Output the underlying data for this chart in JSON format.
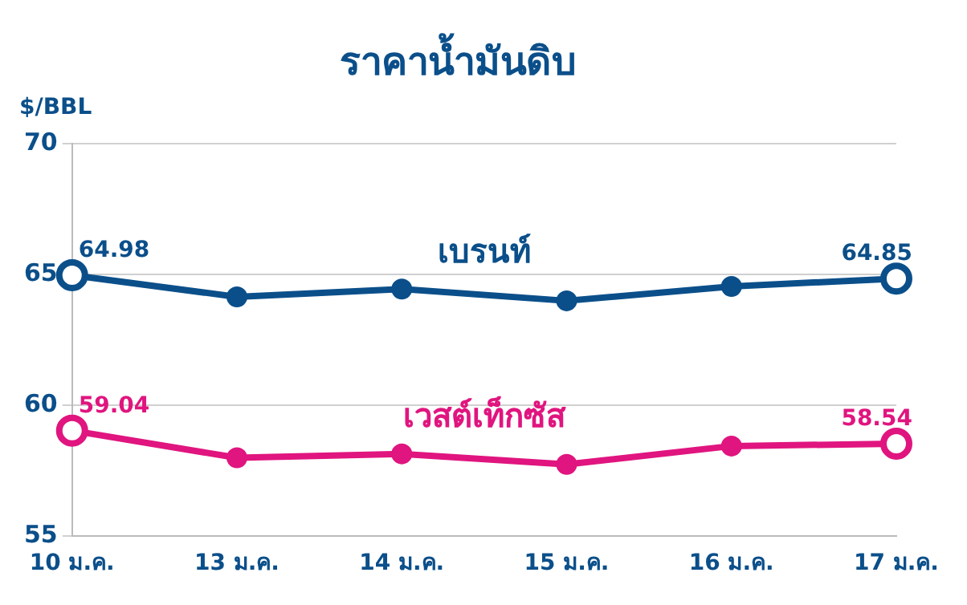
{
  "chart_data": {
    "type": "line",
    "title": "ราคาน้ำมันดิบ",
    "ylabel": "$/BBL",
    "categories": [
      "10 ม.ค.",
      "13 ม.ค.",
      "14 ม.ค.",
      "15 ม.ค.",
      "16 ม.ค.",
      "17 ม.ค."
    ],
    "series": [
      {
        "name": "เบรนท์",
        "color": "#0b4f8a",
        "values": [
          64.98,
          64.15,
          64.45,
          64.0,
          64.55,
          64.85
        ],
        "value_labels": [
          "64.98",
          null,
          null,
          null,
          null,
          "64.85"
        ]
      },
      {
        "name": "เวสต์เท็กซัส",
        "color": "#e0157f",
        "values": [
          59.04,
          58.0,
          58.15,
          57.75,
          58.45,
          58.54
        ],
        "value_labels": [
          "59.04",
          null,
          null,
          null,
          null,
          "58.54"
        ]
      }
    ],
    "ylim": [
      55,
      70
    ],
    "yticks": [
      55,
      60,
      65,
      70
    ],
    "grid": "y",
    "legend": false,
    "marker": "circle",
    "line_style": "solid"
  }
}
